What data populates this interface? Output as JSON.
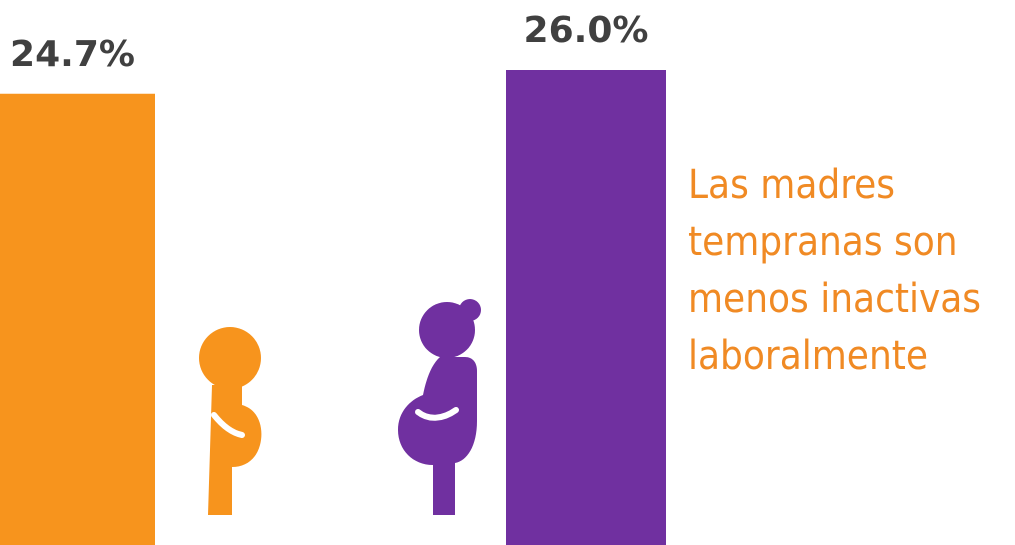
{
  "chart_data": {
    "type": "bar",
    "values": [
      24.7,
      26.0
    ],
    "value_labels": [
      "24.7%",
      "26.0%"
    ],
    "colors": [
      "#F7941D",
      "#7030A0"
    ],
    "annotation": [
      "Las madres",
      "tempranas son",
      "menos inactivas",
      "laboralmente"
    ]
  }
}
